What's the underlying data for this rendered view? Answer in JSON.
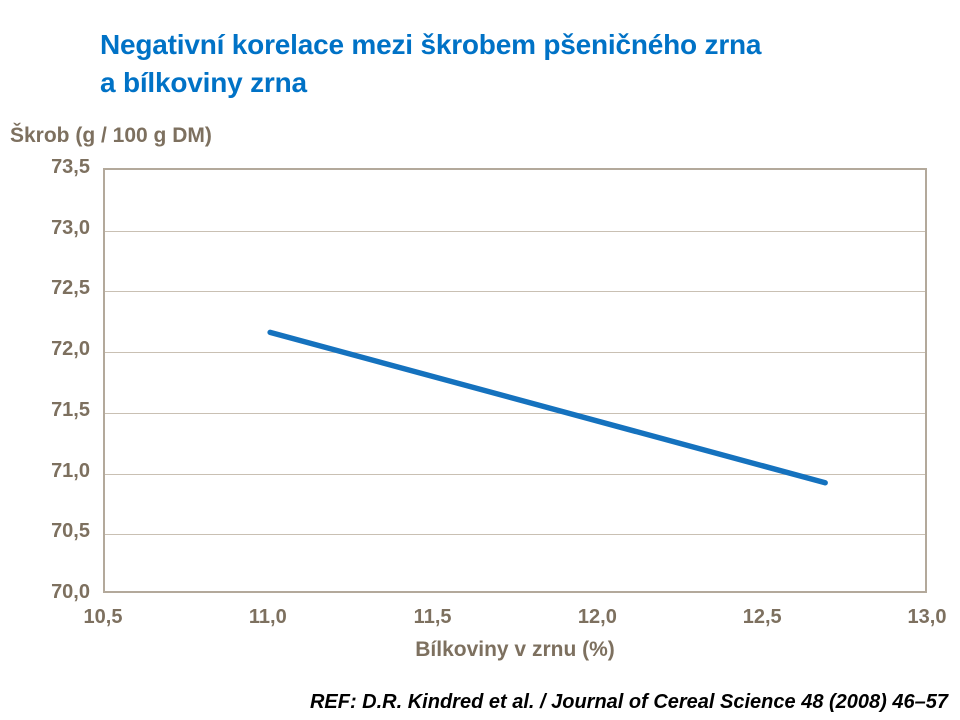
{
  "chart_data": {
    "type": "line",
    "title": "Negativní korelace mezi škrobem pšeničného zrna a bílkoviny zrna",
    "title_lines": {
      "line1": "Negativní korelace mezi škrobem pšeničného zrna",
      "line2": "a bílkoviny zrna"
    },
    "ylabel": "Škrob (g / 100 g DM)",
    "xlabel": "Bílkoviny v zrnu (%)",
    "xlim": [
      10.5,
      13.0
    ],
    "ylim": [
      70.0,
      73.5
    ],
    "x_ticks": [
      {
        "label": "10,5",
        "value": 10.5
      },
      {
        "label": "11,0",
        "value": 11.0
      },
      {
        "label": "11,5",
        "value": 11.5
      },
      {
        "label": "12,0",
        "value": 12.0
      },
      {
        "label": "12,5",
        "value": 12.5
      },
      {
        "label": "13,0",
        "value": 13.0
      }
    ],
    "y_ticks": [
      {
        "label": "73,5",
        "value": 73.5
      },
      {
        "label": "73,0",
        "value": 73.0
      },
      {
        "label": "72,5",
        "value": 72.5
      },
      {
        "label": "72,0",
        "value": 72.0
      },
      {
        "label": "71,5",
        "value": 71.5
      },
      {
        "label": "71,0",
        "value": 71.0
      },
      {
        "label": "70,5",
        "value": 70.5
      },
      {
        "label": "70,0",
        "value": 70.0
      }
    ],
    "grid": "horizontal-only",
    "legend_position": "none",
    "series": [
      {
        "x": [
          11.0,
          12.7
        ],
        "y": [
          72.15,
          70.9
        ]
      }
    ],
    "line_width": 5.5,
    "colors": {
      "title": "#0072C6",
      "line": "#1572BE",
      "axis_text": "#7d705f",
      "plot_border": "#b3a99b",
      "gridline": "#c9c0b3",
      "reference_text": "#000000"
    }
  },
  "footer": {
    "reference": "REF: D.R. Kindred et al. / Journal of Cereal Science 48 (2008) 46–57"
  }
}
